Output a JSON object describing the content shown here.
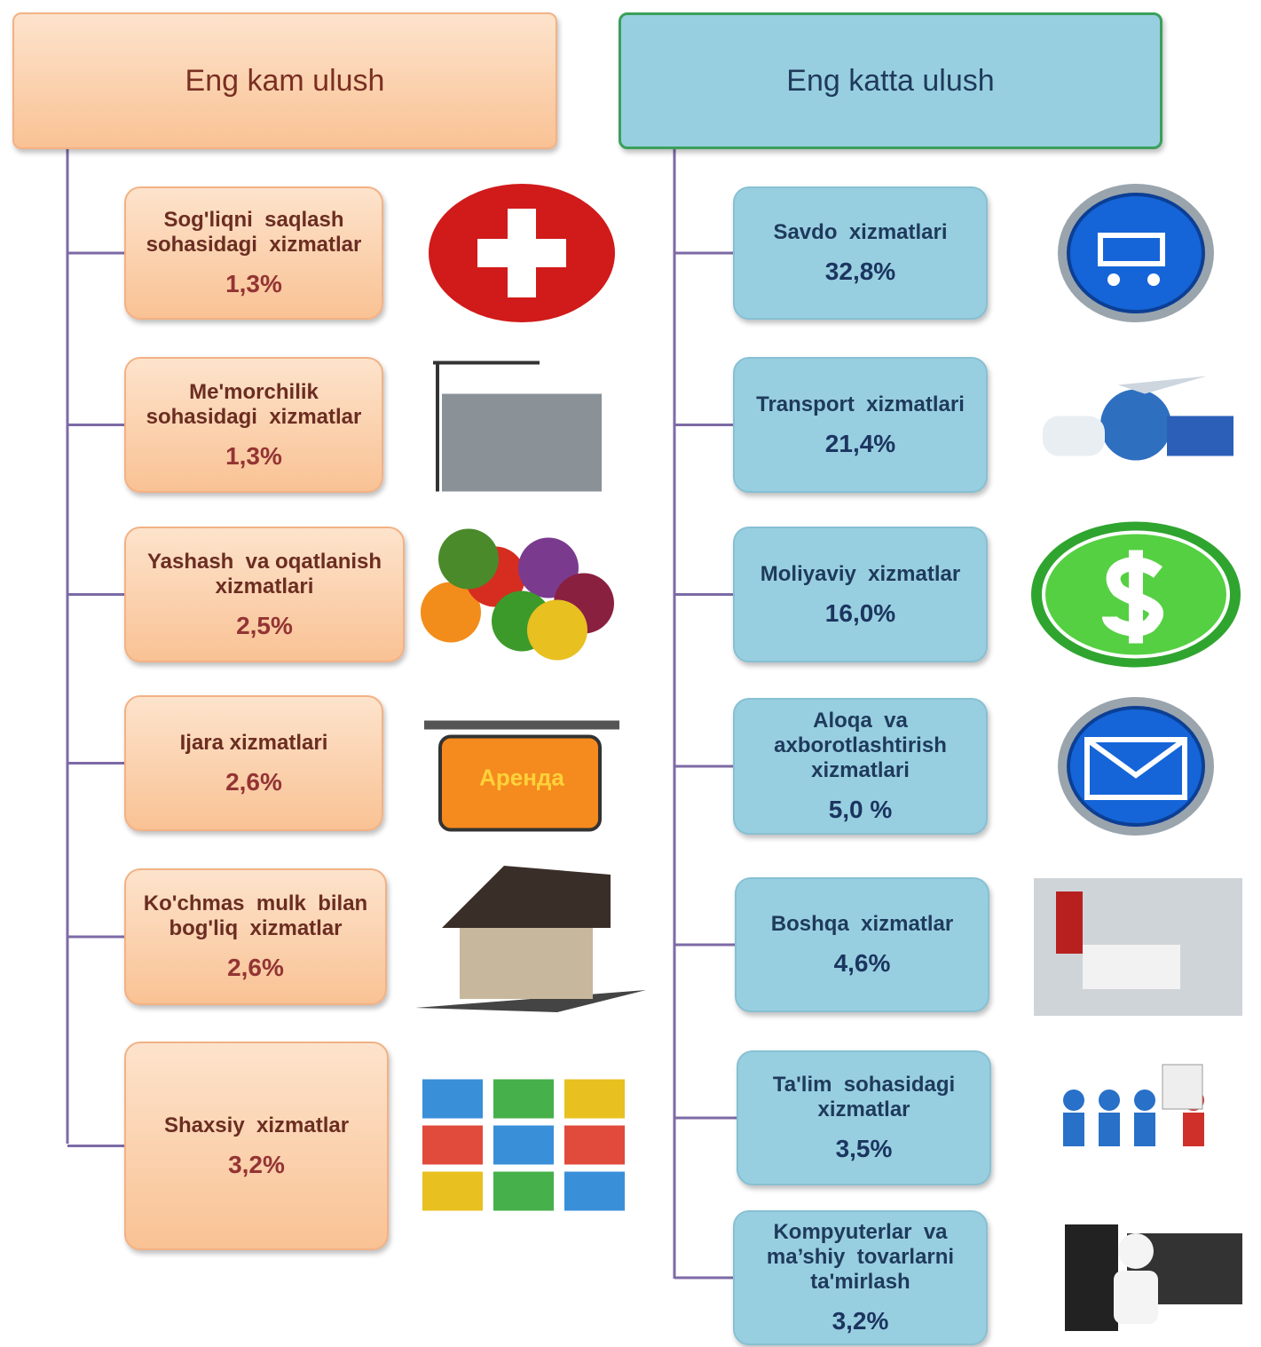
{
  "left": {
    "title": "Eng kam ulush",
    "items": [
      {
        "lines": [
          "Sog'liqni  saqlash",
          "sohasidagi  xizmatlar"
        ],
        "value": "1,3%"
      },
      {
        "lines": [
          "Me'morchilik",
          "sohasidagi  xizmatlar"
        ],
        "value": "1,3%"
      },
      {
        "lines": [
          "Yashash  va oqatlanish",
          "xizmatlari"
        ],
        "value": "2,5%"
      },
      {
        "lines": [
          "Ijara xizmatlari"
        ],
        "value": "2,6%",
        "icon_text": "Аренда"
      },
      {
        "lines": [
          "Ko'chmas  mulk  bilan",
          "bog'liq  xizmatlar"
        ],
        "value": "2,6%"
      },
      {
        "lines": [
          "Shaxsiy  xizmatlar"
        ],
        "value": "3,2%"
      }
    ]
  },
  "right": {
    "title": "Eng katta ulush",
    "items": [
      {
        "lines": [
          "Savdo  xizmatlari"
        ],
        "value": "32,8%"
      },
      {
        "lines": [
          "Transport  xizmatlari"
        ],
        "value": "21,4%"
      },
      {
        "lines": [
          "Moliyaviy  xizmatlar"
        ],
        "value": "16,0%"
      },
      {
        "lines": [
          "Aloqa  va",
          "axborotlashtirish",
          "xizmatlari"
        ],
        "value": "5,0 %"
      },
      {
        "lines": [
          "Boshqa  xizmatlar"
        ],
        "value": "4,6%"
      },
      {
        "lines": [
          "Ta'lim  sohasidagi",
          "xizmatlar"
        ],
        "value": "3,5%"
      },
      {
        "lines": [
          "Kompyuterlar  va",
          "ma’shiy  tovarlarni",
          "ta'mirlash"
        ],
        "value": "3,2%"
      }
    ]
  }
}
